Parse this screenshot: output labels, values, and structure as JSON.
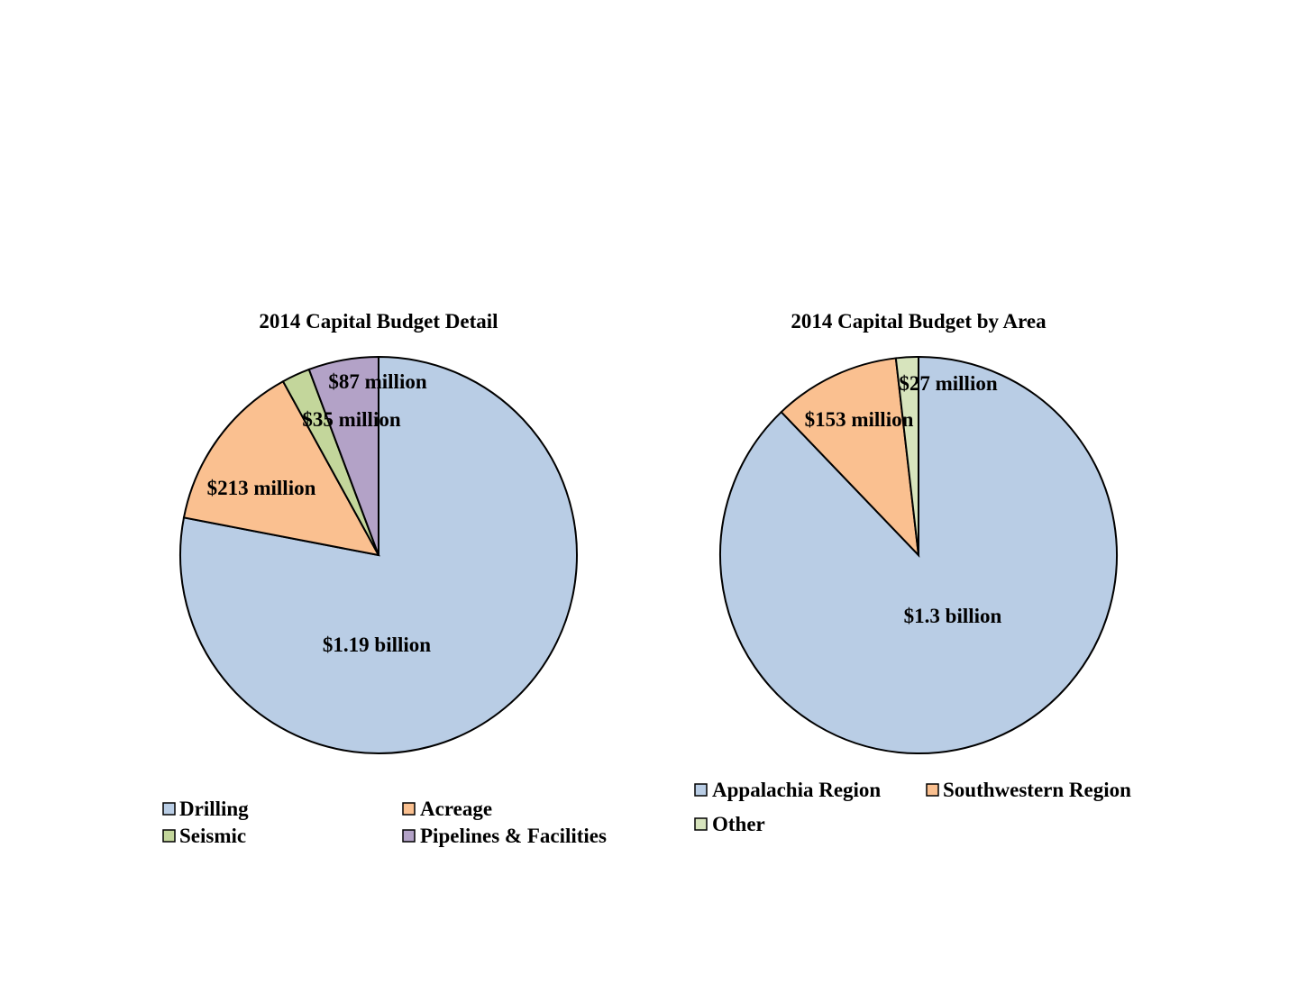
{
  "chart_data": [
    {
      "type": "pie",
      "title": "2014 Capital Budget Detail",
      "unit": "$ million",
      "start_angle_deg": 0,
      "direction": "clockwise",
      "slices": [
        {
          "name": "Drilling",
          "value": 1190,
          "label": "$1.19 billion",
          "color": "#B9CDE5"
        },
        {
          "name": "Acreage",
          "value": 213,
          "label": "$213 million",
          "color": "#FAC090"
        },
        {
          "name": "Seismic",
          "value": 35,
          "label": "$35 million",
          "color": "#C3D69B"
        },
        {
          "name": "Pipelines & Facilities",
          "value": 87,
          "label": "$87 million",
          "color": "#B3A2C7"
        }
      ],
      "legend": {
        "position": "bottom",
        "columns": 2,
        "entries": [
          "Drilling",
          "Acreage",
          "Seismic",
          "Pipelines & Facilities"
        ]
      }
    },
    {
      "type": "pie",
      "title": "2014 Capital Budget by Area",
      "unit": "$ million",
      "start_angle_deg": 0,
      "direction": "clockwise",
      "slices": [
        {
          "name": "Appalachia Region",
          "value": 1300,
          "label": "$1.3 billion",
          "color": "#B9CDE5"
        },
        {
          "name": "Southwestern Region",
          "value": 153,
          "label": "$153 million",
          "color": "#FAC090"
        },
        {
          "name": "Other",
          "value": 27,
          "label": "$27 million",
          "color": "#D7E4BD"
        }
      ],
      "legend": {
        "position": "bottom",
        "columns": 2,
        "entries": [
          "Appalachia Region",
          "Southwestern Region",
          "Other"
        ]
      }
    }
  ]
}
